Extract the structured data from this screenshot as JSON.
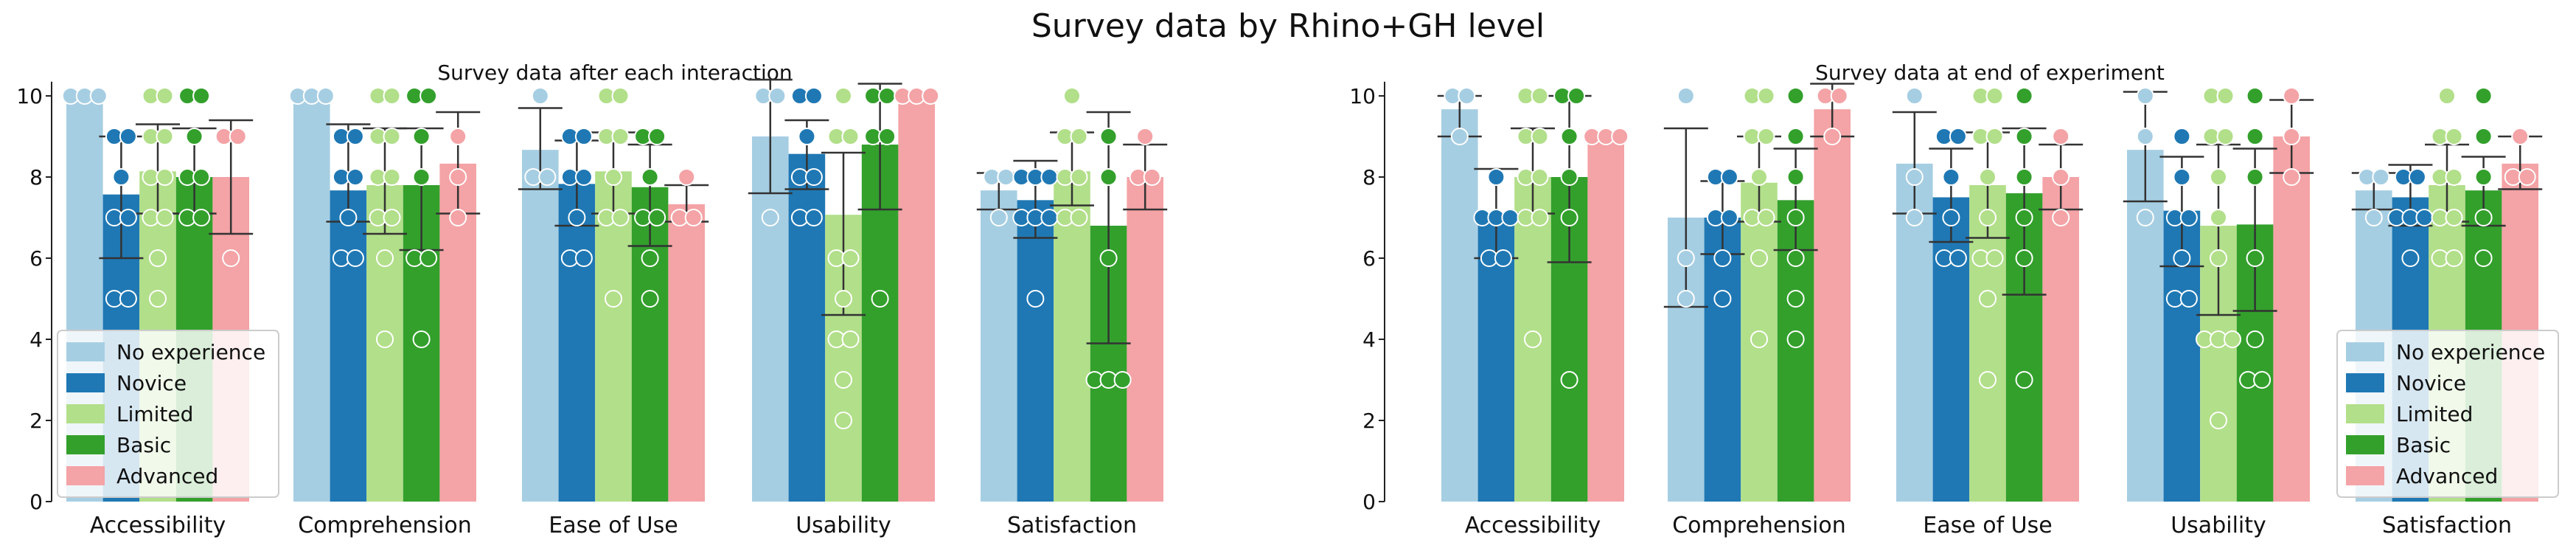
{
  "figure": {
    "title": "Survey data by Rhino+GH level"
  },
  "chart_data": [
    {
      "type": "bar",
      "title": "Survey data after each interaction",
      "categories": [
        "Accessibility",
        "Comprehension",
        "Ease of Use",
        "Usability",
        "Satisfaction"
      ],
      "ylim": [
        0,
        10.5
      ],
      "yticks": [
        "0",
        "2",
        "4",
        "6",
        "8",
        "10"
      ],
      "legend_placement": "lower-left",
      "series": [
        {
          "name": "No experience",
          "color": "#a6cee3",
          "values": [
            10.0,
            10.0,
            8.67,
            9.0,
            7.67
          ],
          "ci": [
            [
              10.0,
              10.0
            ],
            [
              10.0,
              10.0
            ],
            [
              7.7,
              9.7
            ],
            [
              7.6,
              10.4
            ],
            [
              7.2,
              8.1
            ]
          ],
          "points": [
            [
              10,
              10,
              10
            ],
            [
              10,
              10,
              10
            ],
            [
              10,
              8,
              8
            ],
            [
              10,
              10,
              7
            ],
            [
              8,
              8,
              7
            ]
          ]
        },
        {
          "name": "Novice",
          "color": "#1f78b4",
          "values": [
            7.57,
            7.67,
            7.83,
            8.57,
            7.43
          ],
          "ci": [
            [
              6.0,
              9.0
            ],
            [
              6.9,
              9.3
            ],
            [
              6.8,
              8.9
            ],
            [
              7.7,
              9.4
            ],
            [
              6.5,
              8.4
            ]
          ],
          "points": [
            [
              9,
              9,
              8,
              7,
              7,
              5,
              5
            ],
            [
              9,
              9,
              8,
              8,
              7,
              6,
              6
            ],
            [
              9,
              9,
              8,
              8,
              7,
              6,
              6
            ],
            [
              10,
              10,
              9,
              8,
              8,
              7,
              7
            ],
            [
              8,
              8,
              8,
              7,
              7,
              5,
              7
            ]
          ]
        },
        {
          "name": "Limited",
          "color": "#b2df8a",
          "values": [
            8.14,
            7.8,
            8.14,
            7.07,
            8.14
          ],
          "ci": [
            [
              7.1,
              9.3
            ],
            [
              6.6,
              9.2
            ],
            [
              7.1,
              9.1
            ],
            [
              4.6,
              8.6
            ],
            [
              7.3,
              9.1
            ]
          ],
          "points": [
            [
              10,
              10,
              9,
              9,
              8,
              8,
              7,
              7,
              6,
              5
            ],
            [
              10,
              10,
              9,
              9,
              8,
              8,
              7,
              7,
              6,
              4
            ],
            [
              10,
              10,
              9,
              9,
              8,
              7,
              7,
              5
            ],
            [
              10,
              9,
              9,
              6,
              6,
              5,
              4,
              4,
              3,
              2
            ],
            [
              10,
              9,
              9,
              8,
              8,
              7,
              7
            ]
          ]
        },
        {
          "name": "Basic",
          "color": "#33a02c",
          "values": [
            8.0,
            7.8,
            7.75,
            8.8,
            6.8
          ],
          "ci": [
            [
              7.1,
              9.2
            ],
            [
              6.2,
              9.2
            ],
            [
              6.3,
              8.8
            ],
            [
              7.2,
              10.3
            ],
            [
              3.9,
              9.6
            ]
          ],
          "points": [
            [
              10,
              10,
              9,
              8,
              8,
              7,
              7
            ],
            [
              10,
              10,
              9,
              8,
              6,
              6,
              4
            ],
            [
              9,
              9,
              8,
              7,
              7,
              6,
              5
            ],
            [
              10,
              10,
              9,
              9,
              5
            ],
            [
              9,
              8,
              6,
              3,
              3,
              3
            ]
          ]
        },
        {
          "name": "Advanced",
          "color": "#f4a3a6",
          "values": [
            8.0,
            8.33,
            7.33,
            10.0,
            8.0
          ],
          "ci": [
            [
              6.6,
              9.4
            ],
            [
              7.1,
              9.6
            ],
            [
              6.9,
              7.8
            ],
            [
              10.0,
              10.0
            ],
            [
              7.2,
              8.8
            ]
          ],
          "points": [
            [
              9,
              9,
              6
            ],
            [
              9,
              8,
              7
            ],
            [
              7,
              7,
              8
            ],
            [
              10,
              10,
              10
            ],
            [
              8,
              8,
              9
            ]
          ]
        }
      ]
    },
    {
      "type": "bar",
      "title": "Survey data at end of experiment",
      "categories": [
        "Accessibility",
        "Comprehension",
        "Ease of Use",
        "Usability",
        "Satisfaction"
      ],
      "ylim": [
        0,
        10.5
      ],
      "yticks": [
        "0",
        "2",
        "4",
        "6",
        "8",
        "10"
      ],
      "legend_placement": "lower-right",
      "series": [
        {
          "name": "No experience",
          "color": "#a6cee3",
          "values": [
            9.67,
            7.0,
            8.33,
            8.67,
            7.67
          ],
          "ci": [
            [
              9.0,
              10.0
            ],
            [
              4.8,
              9.2
            ],
            [
              7.1,
              9.6
            ],
            [
              7.4,
              10.1
            ],
            [
              7.2,
              8.1
            ]
          ],
          "points": [
            [
              10,
              10,
              9
            ],
            [
              10,
              6,
              5
            ],
            [
              10,
              8,
              7
            ],
            [
              10,
              9,
              7
            ],
            [
              8,
              8,
              7
            ]
          ]
        },
        {
          "name": "Novice",
          "color": "#1f78b4",
          "values": [
            7.0,
            7.0,
            7.5,
            7.17,
            7.5
          ],
          "ci": [
            [
              6.0,
              8.2
            ],
            [
              6.1,
              7.9
            ],
            [
              6.4,
              8.7
            ],
            [
              5.8,
              8.5
            ],
            [
              6.8,
              8.3
            ]
          ],
          "points": [
            [
              8,
              7,
              7,
              7,
              6,
              6
            ],
            [
              8,
              8,
              7,
              7,
              6,
              5
            ],
            [
              9,
              9,
              8,
              7,
              6,
              6
            ],
            [
              9,
              8,
              7,
              7,
              6,
              5,
              5
            ],
            [
              8,
              8,
              7,
              7,
              6,
              7
            ]
          ]
        },
        {
          "name": "Limited",
          "color": "#b2df8a",
          "values": [
            8.0,
            7.86,
            7.8,
            6.8,
            7.8
          ],
          "ci": [
            [
              7.1,
              9.2
            ],
            [
              6.9,
              9.0
            ],
            [
              6.5,
              9.1
            ],
            [
              4.6,
              8.8
            ],
            [
              6.9,
              8.8
            ]
          ],
          "points": [
            [
              10,
              10,
              9,
              9,
              8,
              8,
              7,
              7,
              4
            ],
            [
              10,
              10,
              9,
              9,
              8,
              7,
              7,
              6,
              4
            ],
            [
              10,
              10,
              9,
              9,
              8,
              7,
              6,
              6,
              5,
              3
            ],
            [
              10,
              10,
              9,
              9,
              8,
              7,
              6,
              4,
              4,
              4,
              2
            ],
            [
              10,
              9,
              9,
              8,
              8,
              7,
              7,
              6,
              6
            ]
          ]
        },
        {
          "name": "Basic",
          "color": "#33a02c",
          "values": [
            8.0,
            7.43,
            7.6,
            6.83,
            7.67
          ],
          "ci": [
            [
              5.9,
              10.0
            ],
            [
              6.2,
              8.7
            ],
            [
              5.1,
              9.2
            ],
            [
              4.7,
              8.7
            ],
            [
              6.8,
              8.5
            ]
          ],
          "points": [
            [
              10,
              10,
              9,
              8,
              7,
              3
            ],
            [
              10,
              9,
              8,
              7,
              6,
              5,
              4
            ],
            [
              10,
              9,
              8,
              7,
              6,
              3
            ],
            [
              10,
              9,
              8,
              6,
              4,
              3,
              3
            ],
            [
              10,
              9,
              8,
              7,
              6
            ]
          ]
        },
        {
          "name": "Advanced",
          "color": "#f4a3a6",
          "values": [
            9.0,
            9.67,
            8.0,
            9.0,
            8.33
          ],
          "ci": [
            [
              9.0,
              9.0
            ],
            [
              9.0,
              10.3
            ],
            [
              7.2,
              8.8
            ],
            [
              8.1,
              9.9
            ],
            [
              7.7,
              9.0
            ]
          ],
          "points": [
            [
              9,
              9,
              9
            ],
            [
              10,
              10,
              9
            ],
            [
              9,
              8,
              7
            ],
            [
              10,
              9,
              8
            ],
            [
              9,
              8,
              8
            ]
          ]
        }
      ]
    }
  ]
}
